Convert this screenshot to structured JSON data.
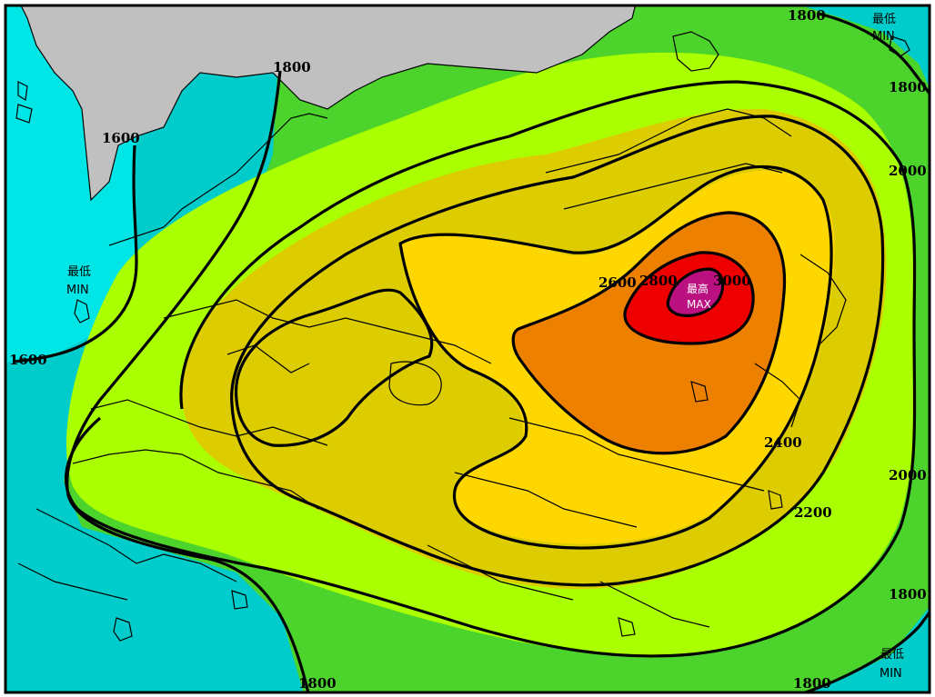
{
  "map": {
    "colors": {
      "sea_deep": "#00e6e6",
      "sea": "#00cccc",
      "land_outside": "#c0c0c0",
      "band_1600_1800": "#4cd42c",
      "band_1800_2000": "#4cd42c",
      "band_2000_2200": "#aaff00",
      "band_2200_2400": "#dccc00",
      "band_2400_2600": "#ffd700",
      "band_2600_2800": "#ee8000",
      "band_2800_3000": "#ee0000",
      "band_max": "#bb1180",
      "isoline": "#000000"
    },
    "contour_labels": [
      {
        "id": "c1600-top",
        "text": "1600"
      },
      {
        "id": "c1600-left",
        "text": "1600"
      },
      {
        "id": "c1800-top",
        "text": "1800"
      },
      {
        "id": "c1800-topright",
        "text": "1800"
      },
      {
        "id": "c1800-right",
        "text": "1800"
      },
      {
        "id": "c1800-right-low",
        "text": "1800"
      },
      {
        "id": "c1800-bottom",
        "text": "1800"
      },
      {
        "id": "c1800-bottomright",
        "text": "1800"
      },
      {
        "id": "c2000-right",
        "text": "2000"
      },
      {
        "id": "c2000-right-low",
        "text": "2000"
      },
      {
        "id": "c2200",
        "text": "2200"
      },
      {
        "id": "c2400",
        "text": "2400"
      },
      {
        "id": "c2600",
        "text": "2600"
      },
      {
        "id": "c2800",
        "text": "2800"
      },
      {
        "id": "c3000",
        "text": "3000"
      }
    ],
    "min_labels": {
      "left": {
        "zh": "最低",
        "en": "MIN"
      },
      "top_right": {
        "zh": "最低",
        "en": "MIN"
      },
      "bottom_right": {
        "zh": "最低",
        "en": "MIN"
      }
    },
    "max_label": {
      "zh": "最高",
      "en": "MAX"
    }
  }
}
